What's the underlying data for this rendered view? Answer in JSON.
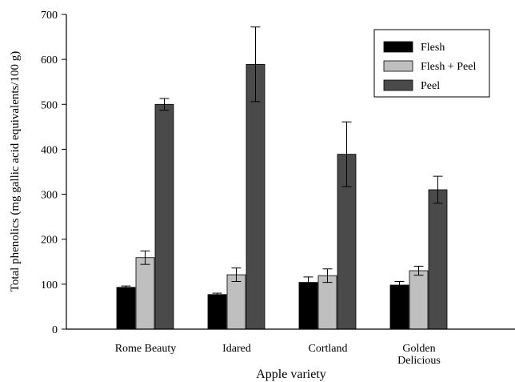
{
  "chart_data": {
    "type": "bar",
    "categories": [
      "Rome Beauty",
      "Idared",
      "Cortland",
      "Golden Delicious"
    ],
    "category_label_lines": [
      [
        "Rome Beauty"
      ],
      [
        "Idared"
      ],
      [
        "Cortland"
      ],
      [
        "Golden",
        "Delicious"
      ]
    ],
    "series": [
      {
        "name": "Flesh",
        "color": "#000000",
        "values": [
          93,
          77,
          104,
          98
        ],
        "errors": [
          3,
          3,
          12,
          8
        ]
      },
      {
        "name": "Flesh + Peel",
        "color": "#bfbfbf",
        "values": [
          159,
          121,
          119,
          130
        ],
        "errors": [
          15,
          15,
          15,
          10
        ]
      },
      {
        "name": "Peel",
        "color": "#4a4a4a",
        "values": [
          500,
          589,
          389,
          310
        ],
        "errors": [
          13,
          83,
          72,
          30
        ]
      }
    ],
    "xlabel": "Apple variety",
    "ylabel": "Total phenolics (mg gallic acid equivalents/100 g)",
    "ylim": [
      0,
      700
    ],
    "yticks": [
      0,
      100,
      200,
      300,
      400,
      500,
      600,
      700
    ],
    "grid": false,
    "legend_position": "top-right"
  }
}
